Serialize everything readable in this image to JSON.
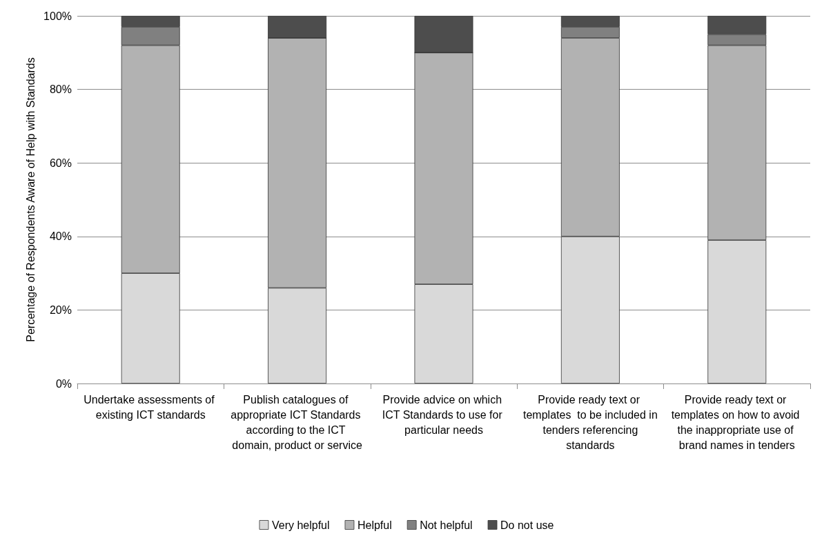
{
  "chart_data": {
    "type": "bar",
    "stacked": true,
    "ylabel": "Percentage of Respondents Aware of Help with Standards",
    "categories": [
      "Undertake assessments of existing ICT standards",
      "Publish catalogues of appropriate ICT Standards according to the ICT domain, product or service",
      "Provide advice on which ICT Standards to use for particular needs",
      "Provide ready text or templates  to be included in tenders referencing standards",
      "Provide ready text or templates on how to avoid the inappropriate use of brand names in tenders"
    ],
    "series": [
      {
        "name": "Very helpful",
        "color": "#d9d9d9",
        "values": [
          30,
          26,
          27,
          40,
          39
        ]
      },
      {
        "name": "Helpful",
        "color": "#b2b2b2",
        "values": [
          62,
          68,
          63,
          54,
          53
        ]
      },
      {
        "name": "Not helpful",
        "color": "#808080",
        "values": [
          5,
          0,
          0,
          3,
          3
        ]
      },
      {
        "name": "Do not use",
        "color": "#4d4d4d",
        "values": [
          3,
          6,
          10,
          3,
          5
        ]
      }
    ],
    "ylim": [
      0,
      100
    ],
    "yticks": [
      {
        "value": 0,
        "label": "0%"
      },
      {
        "value": 20,
        "label": "20%"
      },
      {
        "value": 40,
        "label": "40%"
      },
      {
        "value": 60,
        "label": "60%"
      },
      {
        "value": 80,
        "label": "80%"
      },
      {
        "value": 100,
        "label": "100%"
      }
    ],
    "grid": "y",
    "legend": "bottom"
  }
}
